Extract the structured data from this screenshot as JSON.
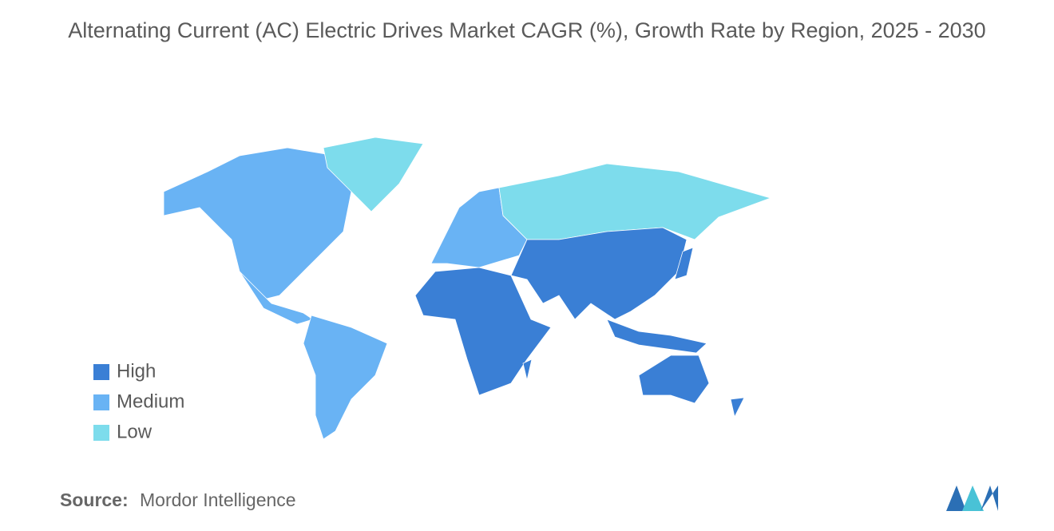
{
  "title": "Alternating Current (AC) Electric Drives Market CAGR (%), Growth Rate by Region, 2025 - 2030",
  "legend": [
    {
      "label": "High",
      "color": "#3a7fd5"
    },
    {
      "label": "Medium",
      "color": "#69b3f4"
    },
    {
      "label": "Low",
      "color": "#7ddcec"
    }
  ],
  "source": {
    "label": "Source:",
    "text": "Mordor Intelligence"
  }
}
